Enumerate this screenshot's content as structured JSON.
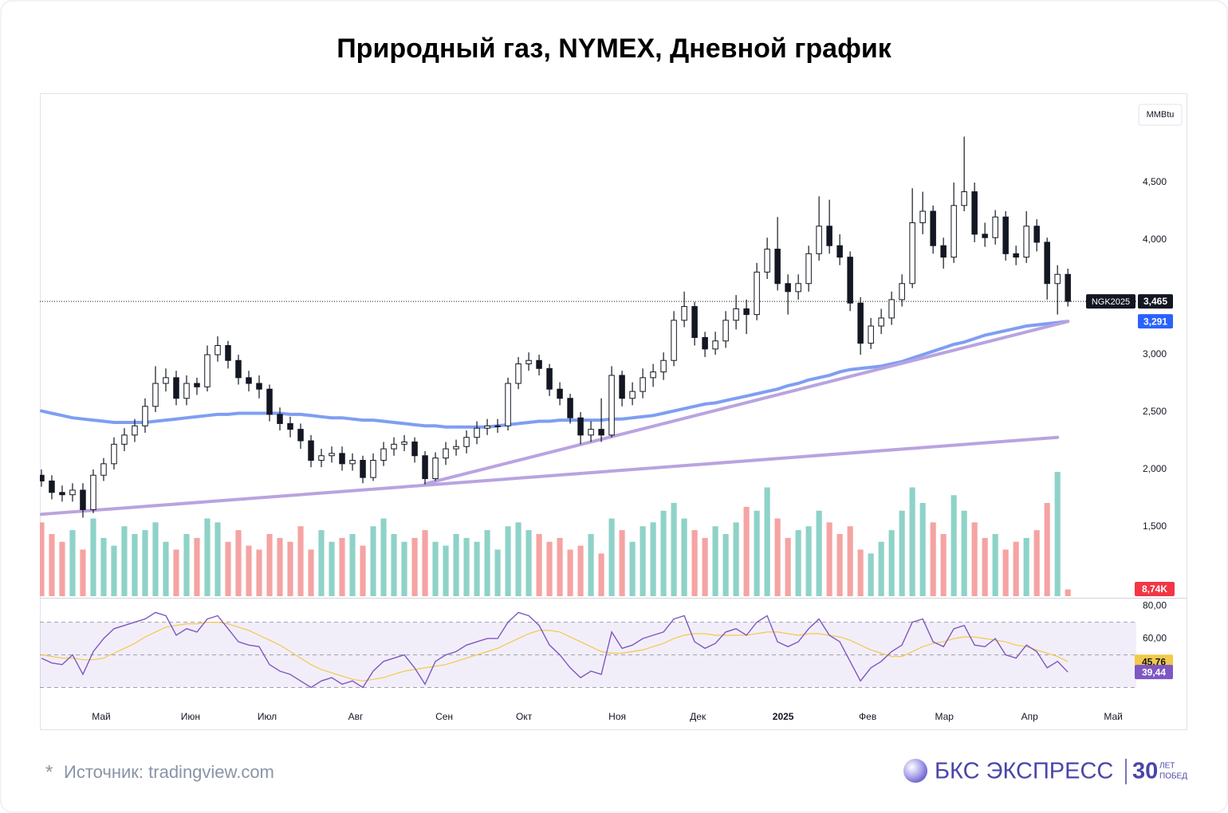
{
  "chart_data": {
    "type": "candlestick",
    "title": "Природный газ, NYMEX, Дневной график",
    "unit": "MMBtu",
    "ticker": "NGK2025",
    "xlim": [
      -0.15,
      105.6
    ],
    "xticks": [
      {
        "value": 5.77,
        "label": "Май"
      },
      {
        "value": 14.38,
        "label": "Июн"
      },
      {
        "value": 21.77,
        "label": "Июл"
      },
      {
        "value": 30.31,
        "label": "Авг"
      },
      {
        "value": 38.85,
        "label": "Сен"
      },
      {
        "value": 46.54,
        "label": "Окт"
      },
      {
        "value": 55.54,
        "label": "Ноя"
      },
      {
        "value": 63.31,
        "label": "Дек"
      },
      {
        "value": 71.54,
        "label": "2025"
      },
      {
        "value": 79.69,
        "label": "Фев"
      },
      {
        "value": 87.08,
        "label": "Мар"
      },
      {
        "value": 95.31,
        "label": "Апр"
      },
      {
        "value": 103.38,
        "label": "Май"
      }
    ],
    "ylim": [
      0.896,
      5.278
    ],
    "yticks": [
      {
        "value": 1.5,
        "label": "1,500"
      },
      {
        "value": 2,
        "label": "2,000"
      },
      {
        "value": 2.5,
        "label": "2,500"
      },
      {
        "value": 3,
        "label": "3,000"
      },
      {
        "value": 4,
        "label": "4,000"
      },
      {
        "value": 4.5,
        "label": "4,500"
      }
    ],
    "up_color": "#ffffff",
    "down_color": "#131722",
    "open": [
      1.95,
      1.9,
      1.8,
      1.78,
      1.82,
      1.65,
      1.95,
      2.05,
      2.22,
      2.3,
      2.38,
      2.55,
      2.75,
      2.8,
      2.62,
      2.75,
      2.72,
      3.0,
      3.08,
      2.95,
      2.8,
      2.75,
      2.7,
      2.48,
      2.4,
      2.35,
      2.25,
      2.08,
      2.12,
      2.14,
      2.05,
      2.08,
      1.93,
      2.08,
      2.18,
      2.22,
      2.24,
      2.12,
      1.92,
      2.1,
      2.18,
      2.2,
      2.28,
      2.36,
      2.38,
      2.38,
      2.75,
      2.92,
      2.95,
      2.88,
      2.7,
      2.62,
      2.45,
      2.3,
      2.35,
      2.3,
      2.82,
      2.62,
      2.68,
      2.8,
      2.85,
      2.95,
      3.3,
      3.42,
      3.15,
      3.05,
      3.12,
      3.3,
      3.4,
      3.35,
      3.72,
      3.92,
      3.62,
      3.55,
      3.62,
      3.88,
      4.12,
      3.95,
      3.85,
      3.45,
      3.1,
      3.25,
      3.32,
      3.48,
      3.62,
      4.15,
      4.25,
      3.95,
      3.85,
      4.3,
      4.42,
      4.05,
      4.02,
      4.2,
      3.88,
      3.85,
      4.12,
      3.98,
      3.62,
      3.7
    ],
    "high": [
      2.0,
      1.95,
      1.86,
      1.88,
      1.88,
      2.0,
      2.1,
      2.28,
      2.36,
      2.44,
      2.62,
      2.9,
      2.88,
      2.86,
      2.82,
      2.8,
      3.08,
      3.16,
      3.12,
      3.0,
      2.86,
      2.82,
      2.74,
      2.54,
      2.46,
      2.4,
      2.3,
      2.18,
      2.2,
      2.2,
      2.14,
      2.12,
      2.14,
      2.24,
      2.28,
      2.3,
      2.28,
      2.16,
      2.15,
      2.24,
      2.26,
      2.34,
      2.42,
      2.44,
      2.44,
      2.8,
      2.98,
      3.02,
      3.0,
      2.92,
      2.76,
      2.66,
      2.5,
      2.42,
      2.62,
      2.9,
      2.86,
      2.76,
      2.88,
      2.92,
      3.02,
      3.38,
      3.55,
      3.46,
      3.2,
      3.2,
      3.38,
      3.52,
      3.48,
      3.8,
      4.02,
      4.2,
      3.7,
      3.7,
      3.95,
      4.38,
      4.35,
      4.05,
      3.9,
      3.5,
      3.32,
      3.4,
      3.55,
      3.7,
      4.45,
      4.42,
      4.3,
      4.02,
      4.5,
      4.9,
      4.5,
      4.15,
      4.26,
      4.25,
      3.95,
      4.25,
      4.18,
      4.02,
      3.78,
      3.75
    ],
    "low": [
      1.85,
      1.74,
      1.72,
      1.72,
      1.58,
      1.62,
      1.9,
      2.0,
      2.16,
      2.24,
      2.32,
      2.5,
      2.68,
      2.56,
      2.56,
      2.65,
      2.68,
      2.94,
      2.88,
      2.74,
      2.68,
      2.62,
      2.42,
      2.34,
      2.28,
      2.18,
      2.02,
      2.02,
      2.06,
      1.99,
      1.99,
      1.88,
      1.9,
      2.03,
      2.12,
      2.16,
      2.06,
      1.87,
      1.9,
      2.04,
      2.12,
      2.14,
      2.22,
      2.3,
      2.32,
      2.34,
      2.7,
      2.86,
      2.82,
      2.64,
      2.56,
      2.4,
      2.22,
      2.24,
      2.24,
      2.28,
      2.55,
      2.56,
      2.62,
      2.72,
      2.78,
      2.9,
      3.24,
      3.08,
      2.98,
      3.0,
      3.06,
      3.22,
      3.18,
      3.3,
      3.66,
      3.56,
      3.35,
      3.48,
      3.55,
      3.82,
      3.88,
      3.78,
      3.38,
      3.0,
      3.05,
      3.18,
      3.26,
      3.42,
      3.58,
      4.05,
      3.88,
      3.75,
      3.8,
      4.25,
      3.98,
      3.94,
      3.96,
      3.82,
      3.78,
      3.8,
      3.9,
      3.48,
      3.35,
      3.42
    ],
    "close": [
      1.9,
      1.8,
      1.78,
      1.82,
      1.65,
      1.95,
      2.05,
      2.22,
      2.3,
      2.38,
      2.55,
      2.75,
      2.8,
      2.62,
      2.75,
      2.72,
      3.0,
      3.08,
      2.95,
      2.8,
      2.75,
      2.7,
      2.48,
      2.4,
      2.35,
      2.25,
      2.08,
      2.12,
      2.14,
      2.05,
      2.08,
      1.93,
      2.08,
      2.18,
      2.22,
      2.24,
      2.12,
      1.92,
      2.1,
      2.18,
      2.2,
      2.28,
      2.36,
      2.38,
      2.38,
      2.75,
      2.92,
      2.95,
      2.88,
      2.7,
      2.62,
      2.45,
      2.3,
      2.35,
      2.3,
      2.82,
      2.62,
      2.68,
      2.8,
      2.85,
      2.95,
      3.3,
      3.42,
      3.15,
      3.05,
      3.12,
      3.3,
      3.4,
      3.35,
      3.72,
      3.92,
      3.62,
      3.55,
      3.62,
      3.88,
      4.12,
      3.95,
      3.85,
      3.45,
      3.1,
      3.25,
      3.32,
      3.48,
      3.62,
      4.15,
      4.25,
      3.95,
      3.85,
      4.3,
      4.42,
      4.05,
      4.02,
      4.2,
      3.88,
      3.85,
      4.12,
      3.98,
      3.62,
      3.7,
      3.465
    ],
    "last_label": "3,465",
    "ma": {
      "color": "#7f9ef2",
      "last_label": "3,291",
      "values": [
        2.51,
        2.49,
        2.47,
        2.45,
        2.44,
        2.43,
        2.42,
        2.41,
        2.41,
        2.41,
        2.41,
        2.42,
        2.43,
        2.44,
        2.45,
        2.46,
        2.47,
        2.48,
        2.48,
        2.49,
        2.49,
        2.49,
        2.49,
        2.49,
        2.48,
        2.48,
        2.47,
        2.46,
        2.45,
        2.45,
        2.44,
        2.43,
        2.43,
        2.42,
        2.41,
        2.4,
        2.39,
        2.38,
        2.38,
        2.37,
        2.37,
        2.37,
        2.37,
        2.37,
        2.38,
        2.39,
        2.4,
        2.41,
        2.42,
        2.42,
        2.43,
        2.43,
        2.43,
        2.43,
        2.43,
        2.44,
        2.44,
        2.45,
        2.46,
        2.47,
        2.49,
        2.51,
        2.53,
        2.55,
        2.57,
        2.58,
        2.6,
        2.62,
        2.64,
        2.66,
        2.68,
        2.7,
        2.73,
        2.75,
        2.78,
        2.8,
        2.82,
        2.85,
        2.87,
        2.88,
        2.89,
        2.9,
        2.92,
        2.94,
        2.97,
        3.0,
        3.03,
        3.06,
        3.09,
        3.11,
        3.14,
        3.17,
        3.19,
        3.21,
        3.23,
        3.25,
        3.26,
        3.27,
        3.28,
        3.291
      ]
    },
    "trendlines": [
      {
        "from": [
          0,
          1.61
        ],
        "to": [
          98,
          2.28
        ]
      },
      {
        "from": [
          37,
          1.875
        ],
        "to": [
          99,
          3.29
        ]
      }
    ],
    "trendline_color": "#b9a3e0",
    "volume": {
      "ylim": [
        0,
        160
      ],
      "up_color": "#8ed2c8",
      "down_color": "#f5a3a3",
      "last_label": "8,74K",
      "values": [
        95,
        80,
        70,
        85,
        60,
        100,
        75,
        65,
        90,
        80,
        85,
        95,
        70,
        60,
        80,
        75,
        100,
        95,
        70,
        85,
        65,
        60,
        80,
        75,
        70,
        90,
        60,
        85,
        70,
        75,
        80,
        65,
        90,
        100,
        80,
        70,
        75,
        85,
        70,
        65,
        80,
        75,
        70,
        85,
        60,
        90,
        95,
        85,
        80,
        70,
        75,
        60,
        65,
        80,
        55,
        100,
        85,
        70,
        90,
        95,
        110,
        120,
        100,
        85,
        75,
        90,
        80,
        95,
        115,
        110,
        140,
        100,
        75,
        85,
        90,
        110,
        95,
        80,
        90,
        60,
        55,
        70,
        85,
        110,
        140,
        120,
        95,
        80,
        130,
        110,
        95,
        75,
        80,
        60,
        70,
        75,
        85,
        120,
        160,
        8.74
      ]
    },
    "rsi": {
      "ylim": [
        19,
        84
      ],
      "levels": [
        70,
        50,
        30
      ],
      "color": "#7e57c2",
      "yticks": [
        {
          "value": 80,
          "label": "80,00"
        },
        {
          "value": 60,
          "label": "60,00"
        }
      ],
      "last_label": "39,44",
      "values": [
        48,
        45,
        44,
        50,
        38,
        52,
        60,
        66,
        68,
        70,
        72,
        76,
        74,
        62,
        66,
        64,
        72,
        74,
        66,
        58,
        56,
        55,
        44,
        40,
        38,
        34,
        30,
        34,
        36,
        32,
        34,
        30,
        40,
        46,
        48,
        50,
        42,
        32,
        46,
        50,
        52,
        56,
        58,
        60,
        60,
        70,
        76,
        74,
        68,
        56,
        50,
        42,
        36,
        40,
        38,
        64,
        54,
        56,
        60,
        62,
        64,
        72,
        74,
        58,
        54,
        57,
        64,
        66,
        62,
        70,
        74,
        58,
        55,
        58,
        66,
        72,
        62,
        58,
        46,
        34,
        42,
        46,
        52,
        56,
        70,
        72,
        58,
        55,
        66,
        68,
        56,
        55,
        60,
        50,
        48,
        56,
        52,
        42,
        46,
        39.44
      ],
      "ma": {
        "color": "#f2c94c",
        "last_label": "45,76",
        "values": [
          50,
          49,
          48,
          48,
          47,
          47,
          48,
          51,
          54,
          57,
          61,
          64,
          67,
          68,
          69,
          69,
          70,
          70,
          69,
          67,
          65,
          62,
          59,
          56,
          52,
          48,
          44,
          41,
          39,
          37,
          35,
          34,
          35,
          36,
          38,
          40,
          41,
          42,
          43,
          44,
          46,
          48,
          50,
          52,
          54,
          57,
          60,
          63,
          65,
          65,
          64,
          61,
          58,
          55,
          52,
          51,
          51,
          52,
          53,
          55,
          57,
          60,
          62,
          63,
          63,
          62,
          62,
          62,
          62,
          63,
          64,
          64,
          63,
          62,
          63,
          63,
          62,
          61,
          59,
          56,
          53,
          51,
          49,
          49,
          52,
          55,
          57,
          58,
          60,
          61,
          61,
          60,
          59,
          58,
          56,
          55,
          53,
          51,
          49,
          45.76
        ]
      }
    }
  },
  "footer": {
    "mark": "*",
    "source": "Источник: tradingview.com"
  },
  "brand": {
    "name": "БКС ЭКСПРЕСС",
    "years": "30",
    "years_top": "ЛЕТ",
    "years_bottom": "ПОБЕД"
  }
}
